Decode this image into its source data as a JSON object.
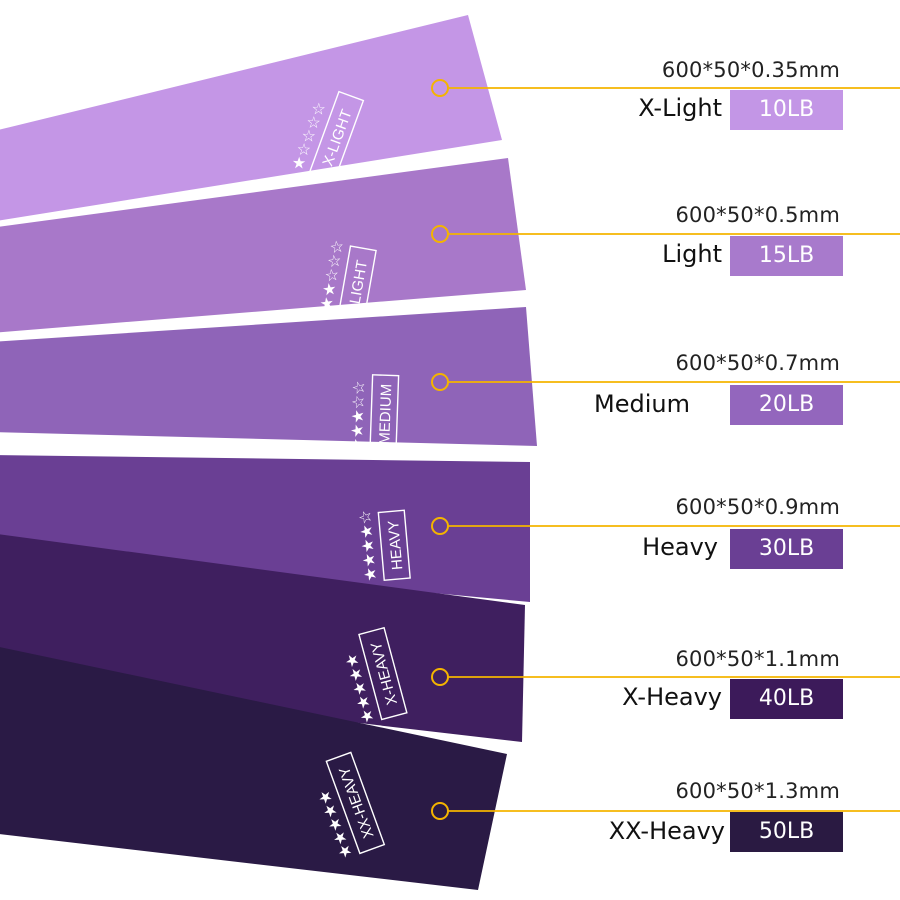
{
  "bands": [
    {
      "level": "X-Light",
      "label": "X-LIGHT",
      "spec": "600*50*0.35mm",
      "load": "10LB",
      "stars": 1,
      "color": "#c496e6",
      "badge_color": "#c396e6"
    },
    {
      "level": "Light",
      "label": "LIGHT",
      "spec": "600*50*0.5mm",
      "load": "15LB",
      "stars": 2,
      "color": "#a878c9",
      "badge_color": "#a87acc"
    },
    {
      "level": "Medium",
      "label": "MEDIUM",
      "spec": "600*50*0.7mm",
      "load": "20LB",
      "stars": 3,
      "color": "#8f64b8",
      "badge_color": "#9366bd"
    },
    {
      "level": "Heavy",
      "label": "HEAVY",
      "spec": "600*50*0.9mm",
      "load": "30LB",
      "stars": 4,
      "color": "#6a3f94",
      "badge_color": "#6a3f94"
    },
    {
      "level": "X-Heavy",
      "label": "X-HEAVY",
      "spec": "600*50*1.1mm",
      "load": "40LB",
      "stars": 5,
      "color": "#3f1f5f",
      "badge_color": "#3c1a5a"
    },
    {
      "level": "XX-Heavy",
      "label": "XX-HEAVY",
      "spec": "600*50*1.3mm",
      "load": "50LB",
      "stars": 5,
      "color": "#2a1a45",
      "badge_color": "#2a1a42"
    }
  ],
  "callout_color": "#f4b400"
}
